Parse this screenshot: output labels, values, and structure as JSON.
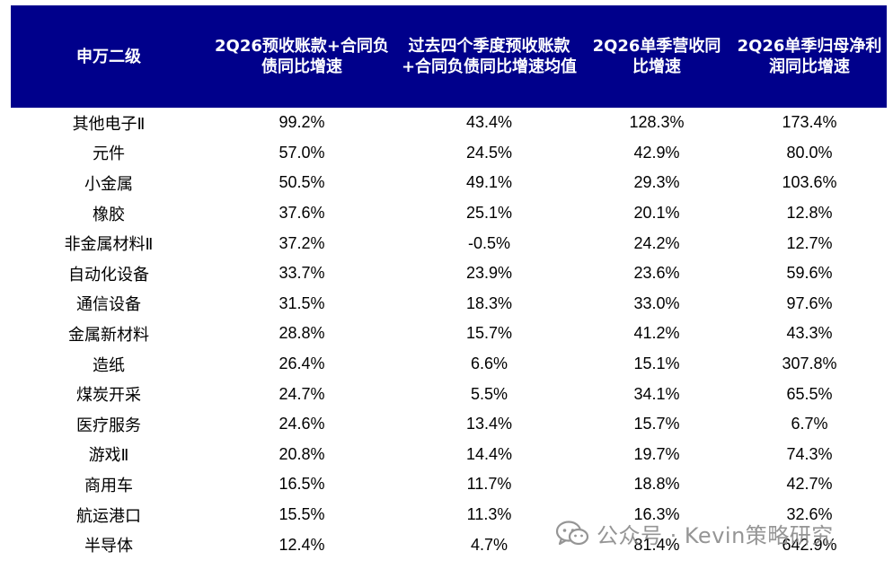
{
  "table": {
    "headers": [
      "申万二级",
      "2Q26预收账款+合同负债同比增速",
      "过去四个季度预收账款+合同负债同比增速均值",
      "2Q26单季营收同比增速",
      "2Q26单季归母净利润同比增速"
    ],
    "rows": [
      [
        "其他电子Ⅱ",
        "99.2%",
        "43.4%",
        "128.3%",
        "173.4%"
      ],
      [
        "元件",
        "57.0%",
        "24.5%",
        "42.9%",
        "80.0%"
      ],
      [
        "小金属",
        "50.5%",
        "49.1%",
        "29.3%",
        "103.6%"
      ],
      [
        "橡胶",
        "37.6%",
        "25.1%",
        "20.1%",
        "12.8%"
      ],
      [
        "非金属材料Ⅱ",
        "37.2%",
        "-0.5%",
        "24.2%",
        "12.7%"
      ],
      [
        "自动化设备",
        "33.7%",
        "23.9%",
        "23.6%",
        "59.6%"
      ],
      [
        "通信设备",
        "31.5%",
        "18.3%",
        "33.0%",
        "97.6%"
      ],
      [
        "金属新材料",
        "28.8%",
        "15.7%",
        "41.2%",
        "43.3%"
      ],
      [
        "造纸",
        "26.4%",
        "6.6%",
        "15.1%",
        "307.8%"
      ],
      [
        "煤炭开采",
        "24.7%",
        "5.5%",
        "34.1%",
        "65.5%"
      ],
      [
        "医疗服务",
        "24.6%",
        "13.4%",
        "15.7%",
        "6.7%"
      ],
      [
        "游戏Ⅱ",
        "20.8%",
        "14.4%",
        "19.7%",
        "74.3%"
      ],
      [
        "商用车",
        "16.5%",
        "11.7%",
        "18.8%",
        "42.7%"
      ],
      [
        "航运港口",
        "15.5%",
        "11.3%",
        "16.3%",
        "32.6%"
      ],
      [
        "半导体",
        "12.4%",
        "4.7%",
        "81.4%",
        "642.9%"
      ]
    ]
  },
  "watermark": {
    "text": "公众号 · Kevin策略研究",
    "icon": "wechat-icon"
  },
  "colors": {
    "header_background": "#00008b",
    "header_text": "#ffffff",
    "watermark": "#8a8a8a"
  }
}
